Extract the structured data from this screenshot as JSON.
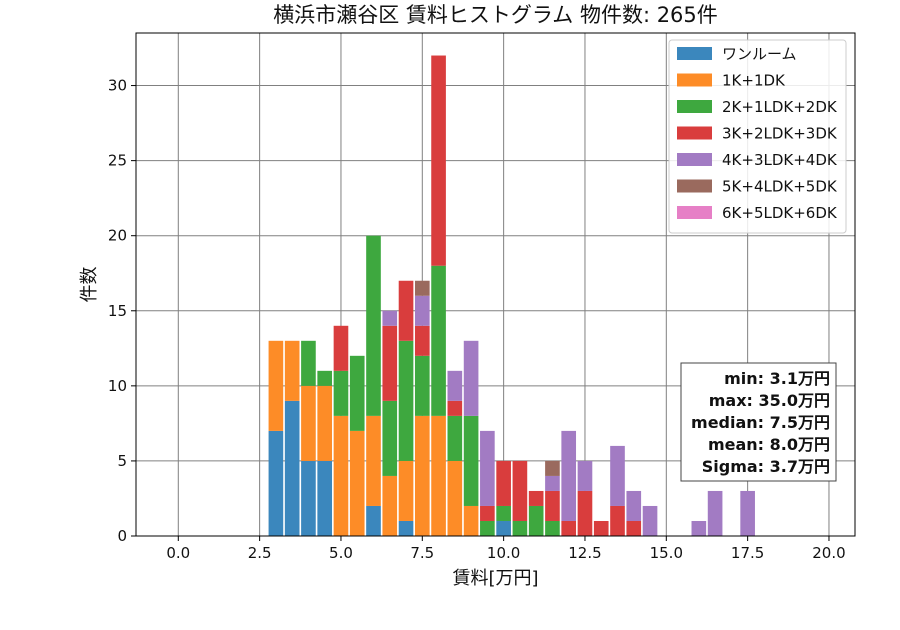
{
  "chart_data": {
    "type": "bar",
    "title": "横浜市瀬谷区 賃料ヒストグラム  物件数: 265件",
    "xlabel": "賃料[万円]",
    "ylabel": "件数",
    "xlim": [
      -1.3,
      20.8
    ],
    "ylim": [
      0,
      33.5
    ],
    "xticks": [
      0,
      2.5,
      5,
      7.5,
      10,
      12.5,
      15,
      17.5,
      20
    ],
    "xtick_labels": [
      "0.0",
      "2.5",
      "5.0",
      "7.5",
      "10.0",
      "12.5",
      "15.0",
      "17.5",
      "20.0"
    ],
    "yticks": [
      0,
      5,
      10,
      15,
      20,
      25,
      30
    ],
    "ytick_labels": [
      "0",
      "5",
      "10",
      "15",
      "20",
      "25",
      "30"
    ],
    "grid": true,
    "stacked": true,
    "legend_position": "top-right",
    "bin_width": 0.5,
    "bins": [
      3.0,
      3.5,
      4.0,
      4.5,
      5.0,
      5.5,
      6.0,
      6.5,
      7.0,
      7.5,
      8.0,
      8.5,
      9.0,
      9.5,
      10.0,
      10.5,
      11.0,
      11.5,
      12.0,
      12.5,
      13.0,
      13.5,
      14.0,
      14.5,
      15.0,
      15.5,
      16.0,
      16.5,
      17.0,
      17.5
    ],
    "series": [
      {
        "name": "ワンルーム",
        "color": "#3b87bd",
        "values": [
          7,
          9,
          5,
          5,
          0,
          0,
          2,
          0,
          1,
          0,
          0,
          0,
          0,
          0,
          1,
          0,
          0,
          0,
          0,
          0,
          0,
          0,
          0,
          0,
          0,
          0,
          0,
          0,
          0,
          0
        ]
      },
      {
        "name": "1K+1DK",
        "color": "#fd8c27",
        "values": [
          6,
          4,
          5,
          5,
          8,
          7,
          6,
          4,
          4,
          8,
          8,
          5,
          2,
          0,
          0,
          0,
          0,
          0,
          0,
          0,
          0,
          0,
          0,
          0,
          0,
          0,
          0,
          0,
          0,
          0
        ]
      },
      {
        "name": "2K+1LDK+2DK",
        "color": "#3ea83f",
        "values": [
          0,
          0,
          3,
          1,
          3,
          5,
          12,
          5,
          8,
          4,
          10,
          3,
          6,
          1,
          1,
          1,
          2,
          1,
          0,
          0,
          0,
          0,
          0,
          0,
          0,
          0,
          0,
          0,
          0,
          0
        ]
      },
      {
        "name": "3K+2LDK+3DK",
        "color": "#d93d3d",
        "values": [
          0,
          0,
          0,
          0,
          3,
          0,
          0,
          5,
          4,
          2,
          14,
          1,
          0,
          1,
          3,
          4,
          1,
          2,
          1,
          3,
          1,
          2,
          1,
          0,
          0,
          0,
          0,
          0,
          0,
          0
        ]
      },
      {
        "name": "4K+3LDK+4DK",
        "color": "#a27bc3",
        "values": [
          0,
          0,
          0,
          0,
          0,
          0,
          0,
          1,
          0,
          2,
          0,
          2,
          5,
          5,
          0,
          0,
          0,
          1,
          6,
          2,
          0,
          4,
          2,
          2,
          0,
          0,
          1,
          3,
          0,
          3
        ]
      },
      {
        "name": "5K+4LDK+5DK",
        "color": "#9a6a5e",
        "values": [
          0,
          0,
          0,
          0,
          0,
          0,
          0,
          0,
          0,
          1,
          0,
          0,
          0,
          0,
          0,
          0,
          0,
          1,
          0,
          0,
          0,
          0,
          0,
          0,
          0,
          0,
          0,
          0,
          0,
          0
        ]
      },
      {
        "name": "6K+5LDK+6DK",
        "color": "#e67fc6",
        "values": [
          0,
          0,
          0,
          0,
          0,
          0,
          0,
          0,
          0,
          0,
          0,
          0,
          0,
          0,
          0,
          0,
          0,
          0,
          0,
          0,
          0,
          0,
          0,
          0,
          0,
          0,
          0,
          0,
          0,
          0
        ]
      }
    ],
    "stats": [
      "min: 3.1万円",
      "max: 35.0万円",
      "median: 7.5万円",
      "mean: 8.0万円",
      "Sigma: 3.7万円"
    ]
  }
}
